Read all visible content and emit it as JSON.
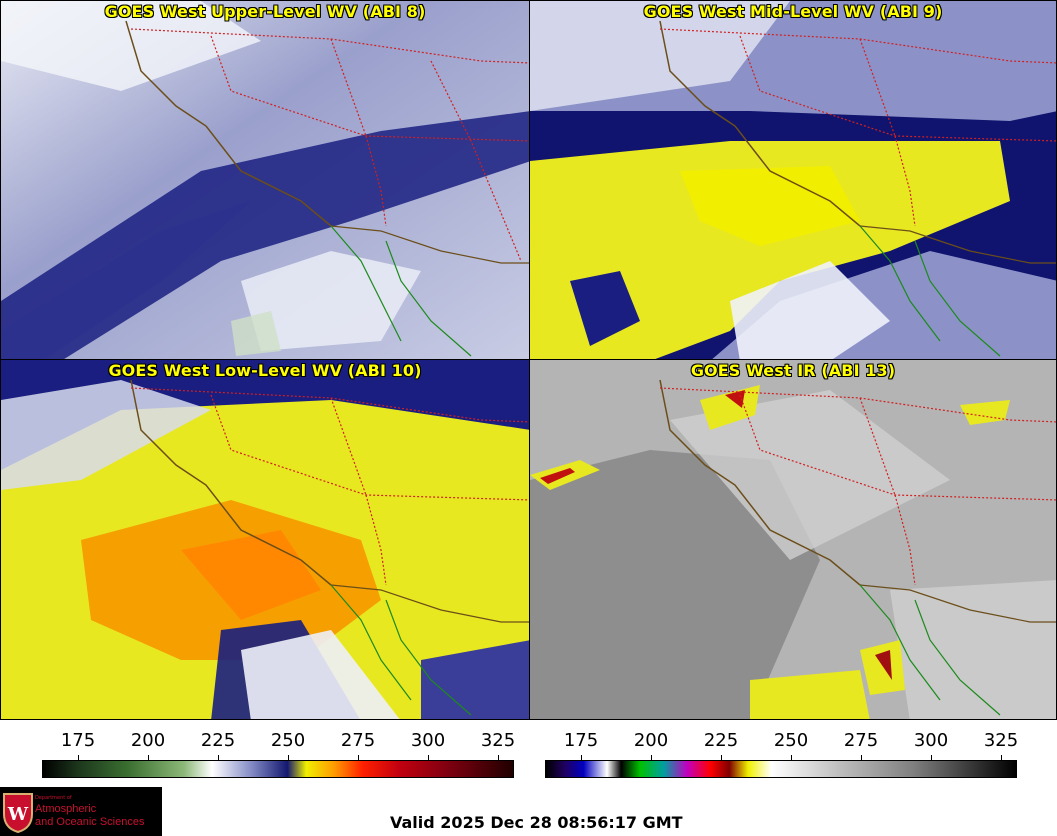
{
  "panels": [
    {
      "title": "GOES West Upper-Level WV (ABI 8)"
    },
    {
      "title": "GOES West Mid-Level WV (ABI 9)"
    },
    {
      "title": "GOES West Low-Level WV (ABI 10)"
    },
    {
      "title": "GOES West IR (ABI 13)"
    }
  ],
  "colorbars": {
    "wv_ticks": [
      "175",
      "200",
      "225",
      "250",
      "275",
      "300",
      "325"
    ],
    "ir_ticks": [
      "175",
      "200",
      "225",
      "250",
      "275",
      "300",
      "325"
    ]
  },
  "logo": {
    "dept": "Department of",
    "line1": "Atmospheric",
    "line2": "and Oceanic Sciences",
    "emblem": "W"
  },
  "valid_time": "Valid 2025 Dec 28 08:56:17 GMT",
  "colors": {
    "border": "#c0302a",
    "coast": "#6b4e1a",
    "mexico_coast": "#1c8a1c",
    "title": "#ffff00"
  }
}
